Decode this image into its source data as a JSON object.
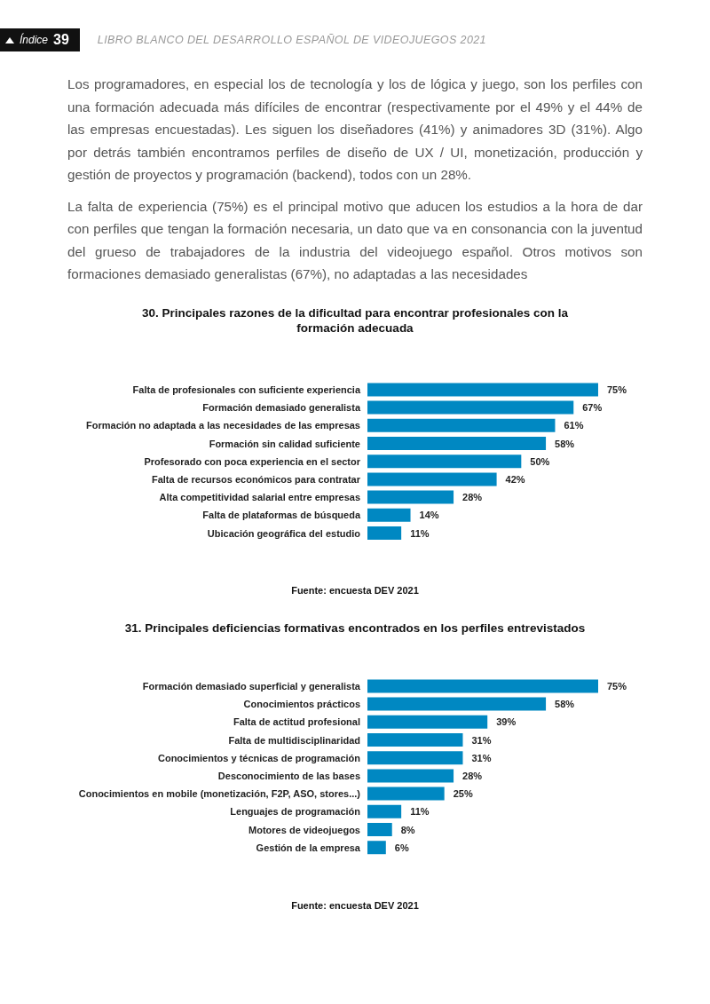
{
  "chart_data": [
    {
      "type": "bar",
      "orientation": "horizontal",
      "title": "30. Principales razones de la dificultad para encontrar profesionales con la formación adecuada",
      "categories": [
        "Falta de profesionales con suficiente experiencia",
        "Formación demasiado generalista",
        "Formación no adaptada a las necesidades de las empresas",
        "Formación sin calidad suficiente",
        "Profesorado con poca experiencia en el sector",
        "Falta de recursos económicos para contratar",
        "Alta competitividad salarial entre empresas",
        "Falta de plataformas de búsqueda",
        "Ubicación geográfica del estudio"
      ],
      "values": [
        75,
        67,
        61,
        58,
        50,
        42,
        28,
        14,
        11
      ],
      "value_labels": [
        "75%",
        "67%",
        "61%",
        "58%",
        "50%",
        "42%",
        "28%",
        "14%",
        "11%"
      ],
      "color": "#0088c2",
      "grid": false,
      "legend": false,
      "annotations": [
        "Índice",
        "39",
        "LIBRO BLANCO DEL DESARROLLO ESPAÑOL DE VIDEOJUEGOS 2021",
        "Los programadores, en especial los de tecnología y los de lógica y juego, son los perfiles con una formación adecuada más difíciles de encontrar (respectivamente por el 49% y el 44% de las empresas encuestadas). Les siguen los diseñadores (41%) y animadores 3D (31%). Algo por detrás también encontramos perfiles de diseño de UX / UI, monetización, producción y gestión de proyectos y programación (backend), todos con un 28%.",
        "La falta de experiencia (75%) es el principal motivo que aducen los estudios a la hora de dar con perfiles que tengan la formación necesaria, un dato que va en consonancia con la juventud del grueso de trabajadores de la industria del videojuego español. Otros motivos son formaciones demasiado generalistas (67%), no adaptadas a las necesidades",
        "Fuente: encuesta DEV 2021"
      ]
    },
    {
      "type": "bar",
      "orientation": "horizontal",
      "title": "31. Principales deficiencias formativas encontrados en los perfiles entrevistados",
      "categories": [
        "Formación demasiado superficial y generalista",
        "Conocimientos prácticos",
        "Falta de actitud profesional",
        "Falta de multidisciplinaridad",
        "Conocimientos y técnicas de programación",
        "Desconocimiento de las bases",
        "Conocimientos en mobile (monetización, F2P, ASO, stores...)",
        "Lenguajes de programación",
        "Motores de videojuegos",
        "Gestión de la empresa"
      ],
      "values": [
        75,
        58,
        39,
        31,
        31,
        28,
        25,
        11,
        8,
        6
      ],
      "value_labels": [
        "75%",
        "58%",
        "39%",
        "31%",
        "31%",
        "28%",
        "25%",
        "11%",
        "8%",
        "6%"
      ],
      "color": "#0088c2",
      "grid": false,
      "legend": false,
      "annotations": [
        "Fuente: encuesta DEV 2021"
      ]
    }
  ]
}
